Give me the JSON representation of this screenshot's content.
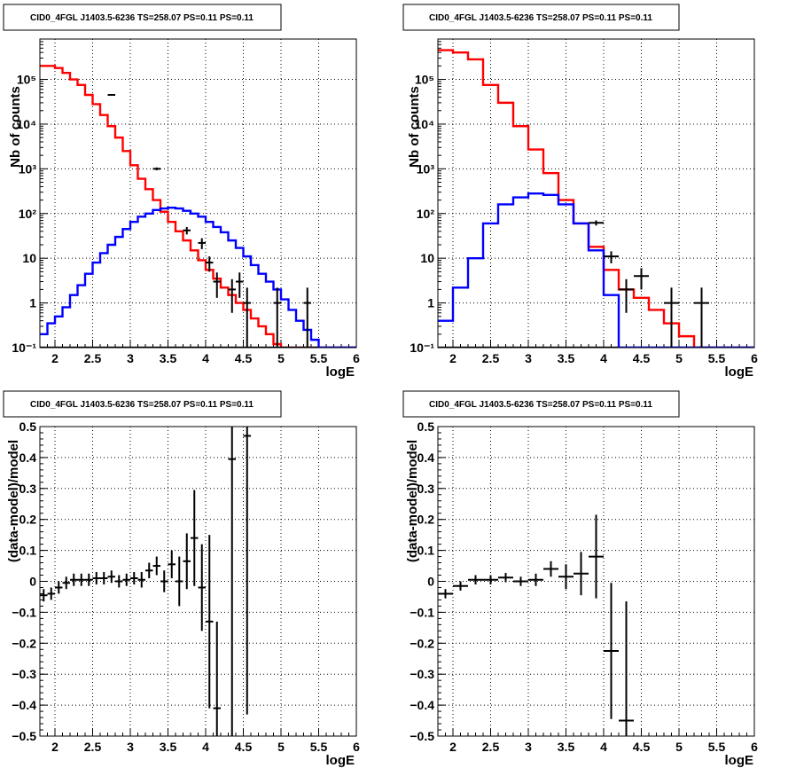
{
  "colors": {
    "data": "#000000",
    "total_model": "#ff0000",
    "source_model": "#0000ff",
    "grid": "#000000"
  },
  "chart_data": [
    {
      "type": "line",
      "title": "CID0_4FGL J1403.5-6236 TS=258.07 PS=0.11 PS=0.11",
      "xlabel": "logE",
      "ylabel": "Nb of counts",
      "xlim": [
        1.8,
        6.0
      ],
      "ylim": [
        0.1,
        800000
      ],
      "yscale": "log",
      "grid": true,
      "x_ticks": [
        "2",
        "2.5",
        "3",
        "3.5",
        "4",
        "4.5",
        "5",
        "5.5",
        "6"
      ],
      "y_ticks": [
        "10⁻¹",
        "1",
        "10",
        "10²",
        "10³",
        "10⁴",
        "10⁵"
      ],
      "bin_edges": [
        1.8,
        1.9,
        2.0,
        2.1,
        2.2,
        2.3,
        2.4,
        2.5,
        2.6,
        2.7,
        2.8,
        2.9,
        3.0,
        3.1,
        3.2,
        3.3,
        3.4,
        3.5,
        3.6,
        3.7,
        3.8,
        3.9,
        4.0,
        4.1,
        4.2,
        4.3,
        4.4,
        4.5,
        4.6,
        4.7,
        4.8,
        4.9,
        5.0,
        5.1,
        5.2,
        5.3,
        5.4,
        5.5,
        5.6,
        5.7,
        5.8,
        5.9,
        6.0
      ],
      "series": [
        {
          "values": [
            200000,
            200000,
            180000,
            140000,
            100000,
            75000,
            45000,
            28000,
            16000,
            9000,
            5000,
            2500,
            1200,
            600,
            350,
            200,
            110,
            65,
            40,
            25,
            15,
            9,
            5.5,
            3.5,
            2.2,
            1.5,
            1.0,
            0.7,
            0.45,
            0.3,
            0.2,
            0.12,
            0.1,
            0.1,
            0.1,
            0.1,
            0.1,
            0.1,
            0.1,
            0.1,
            0.1,
            0.1
          ]
        },
        {
          "values": [
            0.1,
            0.1,
            0.1,
            0.1,
            0.1,
            0.1,
            0.1,
            0.1,
            0.1,
            0.1,
            0.1,
            0.1,
            0.1,
            0.1,
            0.1,
            0.1,
            0.1,
            0.1,
            0.1,
            0.1,
            0.1,
            0.1,
            0.1,
            0.1,
            0.1,
            0.1,
            0.1,
            0.1,
            0.1,
            0.1,
            0.1,
            0.1,
            0.1,
            0.1,
            0.1,
            0.1,
            0.1,
            0.1,
            0.1,
            0.1,
            0.1,
            0.1
          ]
        },
        {
          "values": [
            0.2,
            0.35,
            0.5,
            0.8,
            1.5,
            2.5,
            4.5,
            8,
            13,
            20,
            30,
            45,
            65,
            85,
            100,
            120,
            130,
            135,
            130,
            115,
            100,
            85,
            65,
            50,
            38,
            25,
            17,
            11,
            7,
            4.5,
            3,
            2,
            1.2,
            0.7,
            0.4,
            0.25,
            0.15,
            0.1,
            0.1,
            0.1,
            0.1,
            0.1
          ]
        }
      ],
      "data_points": [
        {
          "x": 2.75,
          "y": 45000,
          "ylo": 44000,
          "yhi": 46000
        },
        {
          "x": 3.35,
          "y": 1000,
          "ylo": 930,
          "yhi": 1070
        },
        {
          "x": 3.75,
          "y": 42,
          "ylo": 34,
          "yhi": 50
        },
        {
          "x": 3.95,
          "y": 22,
          "ylo": 16,
          "yhi": 28
        },
        {
          "x": 4.05,
          "y": 8,
          "ylo": 5,
          "yhi": 11
        },
        {
          "x": 4.15,
          "y": 3,
          "ylo": 1.3,
          "yhi": 4.8
        },
        {
          "x": 4.35,
          "y": 2,
          "ylo": 0.6,
          "yhi": 3.4
        },
        {
          "x": 4.45,
          "y": 3,
          "ylo": 1.3,
          "yhi": 4.8
        },
        {
          "x": 4.55,
          "y": 1,
          "ylo": 0.1,
          "yhi": 2.2
        },
        {
          "x": 4.95,
          "y": 1,
          "ylo": 0.1,
          "yhi": 2.2
        },
        {
          "x": 5.35,
          "y": 1,
          "ylo": 0.1,
          "yhi": 2.2
        }
      ],
      "data_point_halfwidth": 0.05
    },
    {
      "type": "line",
      "title": "CID0_4FGL J1403.5-6236 TS=258.07 PS=0.11 PS=0.11",
      "xlabel": "logE",
      "ylabel": "Nb of counts",
      "xlim": [
        1.8,
        6.0
      ],
      "ylim": [
        0.1,
        800000
      ],
      "yscale": "log",
      "grid": true,
      "x_ticks": [
        "2",
        "2.5",
        "3",
        "3.5",
        "4",
        "4.5",
        "5",
        "5.5",
        "6"
      ],
      "y_ticks": [
        "10⁻¹",
        "1",
        "10",
        "10²",
        "10³",
        "10⁴",
        "10⁵"
      ],
      "bin_edges": [
        1.8,
        2.0,
        2.2,
        2.4,
        2.6,
        2.8,
        3.0,
        3.2,
        3.4,
        3.6,
        3.8,
        4.0,
        4.2,
        4.4,
        4.6,
        4.8,
        5.0,
        5.2,
        5.4,
        5.6,
        5.8,
        6.0
      ],
      "series": [
        {
          "values": [
            450000,
            400000,
            280000,
            75000,
            30000,
            9000,
            2700,
            800,
            200,
            60,
            18,
            5.5,
            2,
            1.3,
            0.7,
            0.35,
            0.18,
            0.1,
            0.1,
            0.1,
            0.1
          ]
        },
        {
          "values": [
            0.1,
            0.1,
            0.1,
            0.1,
            0.1,
            0.1,
            0.1,
            0.1,
            0.1,
            0.1,
            0.1,
            0.1,
            0.1,
            0.1,
            0.1,
            0.1,
            0.1,
            0.1,
            0.1,
            0.1,
            0.1
          ]
        },
        {
          "values": [
            0.4,
            2.2,
            10,
            60,
            160,
            230,
            280,
            260,
            160,
            60,
            15,
            1.5,
            0.1,
            0.1,
            0.1,
            0.1,
            0.1,
            0.1,
            0.1,
            0.1,
            0.1
          ]
        }
      ],
      "data_points": [
        {
          "x": 3.9,
          "y": 62,
          "ylo": 54,
          "yhi": 70
        },
        {
          "x": 4.1,
          "y": 11,
          "ylo": 7.7,
          "yhi": 14.3
        },
        {
          "x": 4.3,
          "y": 2,
          "ylo": 0.6,
          "yhi": 3.4
        },
        {
          "x": 4.5,
          "y": 4,
          "ylo": 2,
          "yhi": 6
        },
        {
          "x": 4.9,
          "y": 1,
          "ylo": 0.1,
          "yhi": 2.2
        },
        {
          "x": 5.3,
          "y": 1,
          "ylo": 0.1,
          "yhi": 2.2
        }
      ],
      "data_point_halfwidth": 0.1
    },
    {
      "type": "scatter",
      "title": "CID0_4FGL J1403.5-6236 TS=258.07 PS=0.11 PS=0.11",
      "xlabel": "logE",
      "ylabel": "(data-model)/model",
      "xlim": [
        1.8,
        6.0
      ],
      "ylim": [
        -0.5,
        0.5
      ],
      "grid": true,
      "x_ticks": [
        "2",
        "2.5",
        "3",
        "3.5",
        "4",
        "4.5",
        "5",
        "5.5",
        "6"
      ],
      "y_ticks": [
        "−0.5",
        "−0.4",
        "−0.3",
        "−0.2",
        "−0.1",
        "0",
        "0.1",
        "0.2",
        "0.3",
        "0.4",
        "0.5"
      ],
      "points": [
        {
          "x": 1.85,
          "y": -0.045,
          "err": 0.02
        },
        {
          "x": 1.95,
          "y": -0.04,
          "err": 0.02
        },
        {
          "x": 2.05,
          "y": -0.02,
          "err": 0.02
        },
        {
          "x": 2.15,
          "y": -0.005,
          "err": 0.02
        },
        {
          "x": 2.25,
          "y": 0.005,
          "err": 0.02
        },
        {
          "x": 2.35,
          "y": 0.005,
          "err": 0.02
        },
        {
          "x": 2.45,
          "y": 0.005,
          "err": 0.02
        },
        {
          "x": 2.55,
          "y": 0.01,
          "err": 0.02
        },
        {
          "x": 2.65,
          "y": 0.01,
          "err": 0.02
        },
        {
          "x": 2.75,
          "y": 0.015,
          "err": 0.02
        },
        {
          "x": 2.85,
          "y": 0.0,
          "err": 0.02
        },
        {
          "x": 2.95,
          "y": 0.005,
          "err": 0.02
        },
        {
          "x": 3.05,
          "y": 0.01,
          "err": 0.02
        },
        {
          "x": 3.15,
          "y": 0.005,
          "err": 0.025
        },
        {
          "x": 3.25,
          "y": 0.035,
          "err": 0.025
        },
        {
          "x": 3.35,
          "y": 0.05,
          "err": 0.03
        },
        {
          "x": 3.45,
          "y": 0.0,
          "err": 0.035
        },
        {
          "x": 3.55,
          "y": 0.055,
          "err": 0.045
        },
        {
          "x": 3.65,
          "y": 0.0,
          "err": 0.08
        },
        {
          "x": 3.75,
          "y": 0.065,
          "err": 0.09
        },
        {
          "x": 3.85,
          "y": 0.14,
          "err": 0.155
        },
        {
          "x": 3.95,
          "y": -0.02,
          "err": 0.14
        },
        {
          "x": 4.05,
          "y": -0.13,
          "err": 0.28
        },
        {
          "x": 4.15,
          "y": -0.41,
          "err": 0.28
        },
        {
          "x": 4.35,
          "y": 0.395,
          "err": 0.9
        },
        {
          "x": 4.55,
          "y": 0.47,
          "err": 0.9
        }
      ],
      "x_halfwidth": 0.05
    },
    {
      "type": "scatter",
      "title": "CID0_4FGL J1403.5-6236 TS=258.07 PS=0.11 PS=0.11",
      "xlabel": "logE",
      "ylabel": "(data-model)/model",
      "xlim": [
        1.8,
        6.0
      ],
      "ylim": [
        -0.5,
        0.5
      ],
      "grid": true,
      "x_ticks": [
        "2",
        "2.5",
        "3",
        "3.5",
        "4",
        "4.5",
        "5",
        "5.5",
        "6"
      ],
      "y_ticks": [
        "−0.5",
        "−0.4",
        "−0.3",
        "−0.2",
        "−0.1",
        "0",
        "0.1",
        "0.2",
        "0.3",
        "0.4",
        "0.5"
      ],
      "points": [
        {
          "x": 1.9,
          "y": -0.04,
          "err": 0.015
        },
        {
          "x": 2.1,
          "y": -0.015,
          "err": 0.015
        },
        {
          "x": 2.3,
          "y": 0.005,
          "err": 0.015
        },
        {
          "x": 2.5,
          "y": 0.005,
          "err": 0.015
        },
        {
          "x": 2.7,
          "y": 0.012,
          "err": 0.015
        },
        {
          "x": 2.9,
          "y": 0.0,
          "err": 0.015
        },
        {
          "x": 3.1,
          "y": 0.005,
          "err": 0.02
        },
        {
          "x": 3.3,
          "y": 0.04,
          "err": 0.025
        },
        {
          "x": 3.5,
          "y": 0.015,
          "err": 0.04
        },
        {
          "x": 3.7,
          "y": 0.025,
          "err": 0.07
        },
        {
          "x": 3.9,
          "y": 0.08,
          "err": 0.135
        },
        {
          "x": 4.1,
          "y": -0.225,
          "err": 0.22
        },
        {
          "x": 4.3,
          "y": -0.45,
          "err": 0.385
        }
      ],
      "x_halfwidth": 0.1
    }
  ]
}
